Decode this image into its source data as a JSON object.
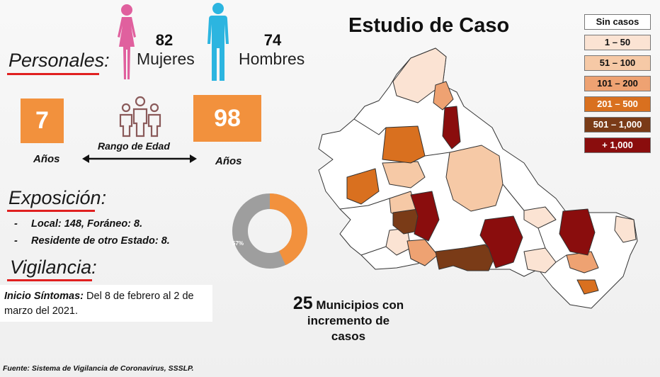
{
  "header": {
    "title": "Estudio de Caso"
  },
  "personales": {
    "label": "Personales:",
    "women": {
      "count": "82",
      "label": "Mujeres"
    },
    "men": {
      "count": "74",
      "label": "Hombres"
    }
  },
  "age_range": {
    "min": "7",
    "max": "98",
    "min_unit": "Años",
    "max_unit": "Años",
    "label": "Rango de Edad"
  },
  "exposicion": {
    "label": "Exposición:",
    "items": [
      {
        "dash": "-",
        "text": "Local: 148, Foráneo: 8."
      },
      {
        "dash": "-",
        "text": "Residente de otro Estado: 8."
      }
    ]
  },
  "vigilancia": {
    "label": "Vigilancia:",
    "onset_label": "Inicio Síntomas:",
    "onset_text": " Del 8 de febrero al 2 de marzo del 2021."
  },
  "donut": {
    "percent_label": "57%",
    "orange_fraction": 0.43
  },
  "municipios": {
    "count": "25",
    "text_line1": "Municipios con",
    "text_line2": "incremento de",
    "text_line3": "casos"
  },
  "legend": [
    {
      "label": "Sin casos",
      "color": "#ffffff",
      "text_color": "#111111"
    },
    {
      "label": "1 – 50",
      "color": "#fbe3d3",
      "text_color": "#111111"
    },
    {
      "label": "51 – 100",
      "color": "#f6c9a6",
      "text_color": "#111111"
    },
    {
      "label": "101 – 200",
      "color": "#eea272",
      "text_color": "#111111"
    },
    {
      "label": "201 – 500",
      "color": "#d9701f",
      "text_color": "#ffffff"
    },
    {
      "label": "501 – 1,000",
      "color": "#7a3b17",
      "text_color": "#ffffff"
    },
    {
      "label": "+ 1,000",
      "color": "#8a0d0d",
      "text_color": "#ffffff"
    }
  ],
  "colors": {
    "accent_orange": "#f2913d",
    "women_icon": "#e0609e",
    "men_icon": "#2cb5e0",
    "underline_red": "#e02020",
    "donut_gray": "#9e9e9e"
  },
  "footer": {
    "source": "Fuente: Sistema de Vigilancia de Coronavirus, SSSLP."
  }
}
